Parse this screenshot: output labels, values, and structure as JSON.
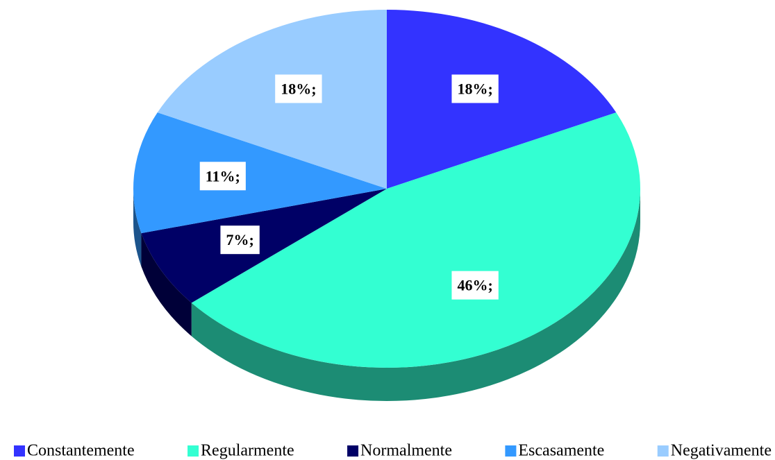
{
  "chart_data": {
    "type": "pie",
    "categories": [
      "Constantemente",
      "Regularmente",
      "Normalmente",
      "Escasamente",
      "Negativamente"
    ],
    "values": [
      18,
      46,
      7,
      11,
      18
    ],
    "value_labels": [
      "18%;",
      "46%;",
      "7%;",
      "11%;",
      "18%;"
    ],
    "colors": [
      "#3333ff",
      "#33ffd2",
      "#000066",
      "#3399ff",
      "#99ccff"
    ],
    "legend": "bottom"
  }
}
